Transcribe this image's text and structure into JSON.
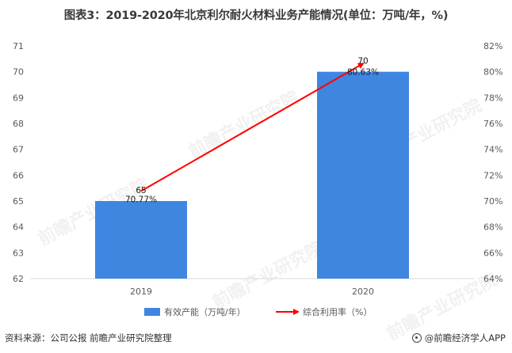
{
  "title": "图表3：2019-2020年北京利尔耐火材料业务产能情况(单位：万吨/年，%)",
  "footer": {
    "source": "资料来源：公司公报 前瞻产业研究院整理",
    "brand": "@前瞻经济学人APP"
  },
  "watermark": "前瞻产业研究院",
  "colors": {
    "bar": "#3f86e0",
    "line": "#ff0000"
  },
  "chart_data": {
    "type": "bar",
    "categories": [
      "2019",
      "2020"
    ],
    "series": [
      {
        "name": "有效产能（万吨/年）",
        "type": "bar",
        "axis": "left",
        "values": [
          65,
          70
        ],
        "labels": [
          "65",
          "70"
        ]
      },
      {
        "name": "综合利用率（%）",
        "type": "line",
        "axis": "right",
        "values": [
          70.77,
          80.63
        ],
        "labels": [
          "70.77%",
          "80.63%"
        ]
      }
    ],
    "y_left": {
      "min": 62,
      "max": 71,
      "step": 1
    },
    "y_right": {
      "min": 64,
      "max": 82,
      "step": 2,
      "suffix": "%"
    },
    "legend": "bottom-center",
    "grid": false
  }
}
